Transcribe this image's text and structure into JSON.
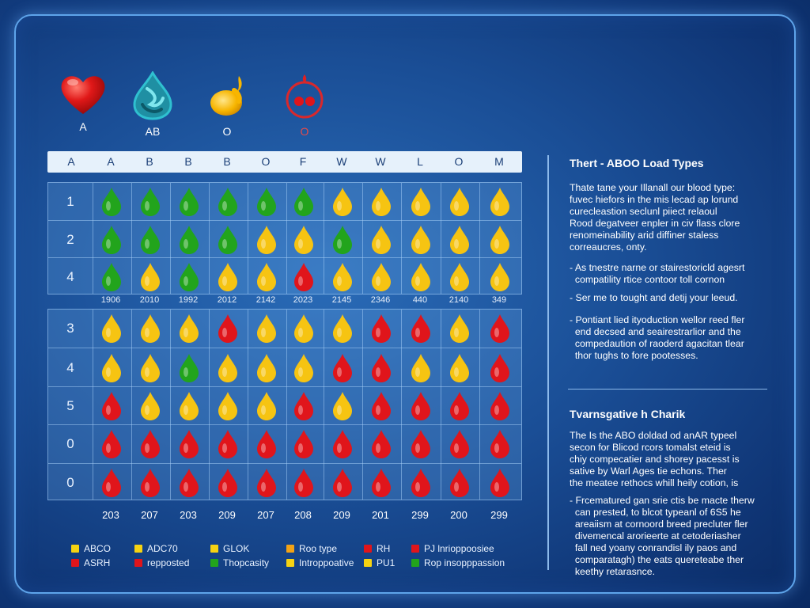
{
  "icons": [
    {
      "name": "heart-icon",
      "label": "A",
      "color": "#e11c1c",
      "label_color": "#ffffff"
    },
    {
      "name": "water-drop-icon",
      "label": "AB",
      "color": "#2fb6c4",
      "label_color": "#ffffff"
    },
    {
      "name": "yellow-drop-icon",
      "label": "O",
      "color": "#f7b500",
      "label_color": "#ffffff"
    },
    {
      "name": "red-ring-icon",
      "label": "O",
      "color": "#d9282c",
      "label_color": "#e34b4b"
    }
  ],
  "colors": {
    "green": "#22a41c",
    "yellow": "#f6c412",
    "red": "#e0151b",
    "accent": "#5ea4ea"
  },
  "chart_data": {
    "type": "table",
    "column_headers": [
      "A",
      "A",
      "B",
      "B",
      "B",
      "O",
      "F",
      "W",
      "W",
      "L",
      "O",
      "M"
    ],
    "upper_rows": [
      {
        "label": "1",
        "cells": [
          "g",
          "g",
          "g",
          "g",
          "g",
          "g",
          "y",
          "y",
          "y",
          "y",
          "y"
        ]
      },
      {
        "label": "2",
        "cells": [
          "g",
          "g",
          "g",
          "g",
          "y",
          "y",
          "g",
          "y",
          "y",
          "y",
          "y"
        ]
      },
      {
        "label": "4",
        "cells": [
          "g",
          "y",
          "g",
          "y",
          "y",
          "r",
          "y",
          "y",
          "y",
          "y",
          "y"
        ]
      }
    ],
    "year_labels": [
      "1906",
      "2010",
      "1992",
      "2012",
      "2142",
      "2023",
      "2145",
      "2346",
      "440",
      "2140",
      "349"
    ],
    "lower_rows": [
      {
        "label": "3",
        "cells": [
          "y",
          "y",
          "y",
          "r",
          "y",
          "y",
          "y",
          "r",
          "r",
          "y",
          "r"
        ]
      },
      {
        "label": "4",
        "cells": [
          "y",
          "y",
          "g",
          "y",
          "y",
          "y",
          "r",
          "r",
          "y",
          "y",
          "r"
        ]
      },
      {
        "label": "5",
        "cells": [
          "r",
          "y",
          "y",
          "y",
          "y",
          "r",
          "y",
          "r",
          "r",
          "r",
          "r"
        ]
      },
      {
        "label": "0",
        "cells": [
          "r",
          "r",
          "r",
          "r",
          "r",
          "r",
          "r",
          "r",
          "r",
          "r",
          "r"
        ]
      },
      {
        "label": "0",
        "cells": [
          "r",
          "r",
          "r",
          "r",
          "r",
          "r",
          "r",
          "r",
          "r",
          "r",
          "r"
        ]
      }
    ],
    "footer_values": [
      "203",
      "207",
      "203",
      "209",
      "207",
      "208",
      "209",
      "201",
      "299",
      "200",
      "299"
    ]
  },
  "legend": [
    {
      "label": "ABCO",
      "color": "#f6d312"
    },
    {
      "label": "ADC70",
      "color": "#f6d312"
    },
    {
      "label": "GLOK",
      "color": "#f6d312"
    },
    {
      "label": "Roo type",
      "color": "#f3a316"
    },
    {
      "label": "RH",
      "color": "#e0151b"
    },
    {
      "label": "PJ lnrioppoosiee",
      "color": "#e0151b"
    },
    {
      "label": "ASRH",
      "color": "#e0151b"
    },
    {
      "label": "repposted",
      "color": "#e0151b"
    },
    {
      "label": "Thopcasity",
      "color": "#22a41c"
    },
    {
      "label": "Introppoative",
      "color": "#f6d312"
    },
    {
      "label": "PU1",
      "color": "#f6d312"
    },
    {
      "label": "Rop insopppassion",
      "color": "#22a41c"
    }
  ],
  "side": {
    "title1": "Thert - ABOO Load Types",
    "p1": [
      "Thate tane your Illanall our blood type:",
      "fuvec hiefors in the mis lecad ap lorund",
      "curecleastion seclunl piiect relaoul",
      "Rood degatveer enpler in civ flass clore",
      "renomeinability arid diffiner staless",
      "correaucres, onty."
    ],
    "b1": [
      "- As tnestre narne or stairestoricld agesrt",
      "  compatility rtice contoor toll cornon"
    ],
    "b2": [
      "- Ser me to tought and detij your leeud."
    ],
    "b3": [
      "- Pontiant lied ityoduction wellor reed fler",
      "  end decsed and seairestrarlior and the",
      "  compedaution of raoderd agacitan tlear",
      "  thor tughs to fore pootesses."
    ],
    "title2": "Tvarnsgative h Charik",
    "p2": [
      "The Is the ABO doldad od anAR typeel",
      "secon for Blicod rcors tomalst eteid is",
      "chiy compecatier and shorey pacesst is",
      "sative by Warl Ages tie echons. Ther",
      "the meatee rethocs whill heily cotion, is"
    ],
    "b4": [
      "- Frcematured gan srie ctis be macte therw",
      "  can prested, to blcot typeanl of 6S5 he",
      "  areaiism at cornoord breed precluter fler",
      "  divemencal arorieerte at cetoderiasher",
      "  fall ned yoany conrandisl ily paos and",
      "  comparatagh) the eats quereteabe ther",
      "  keethy retarasnce."
    ]
  }
}
